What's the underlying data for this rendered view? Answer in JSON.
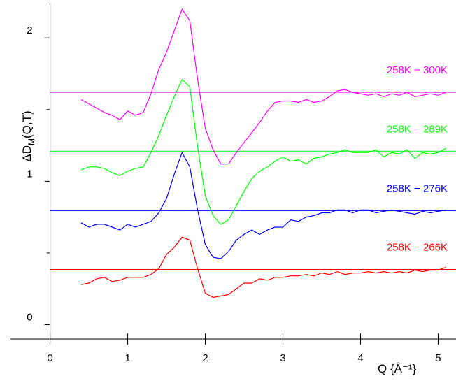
{
  "chart_data": {
    "type": "line",
    "ylabel": [
      "ΔD",
      "M",
      "(Q,T)"
    ],
    "xlabel": "Q  {Å⁻¹}",
    "xlim": [
      -0.51,
      5.23
    ],
    "ylim": [
      -0.1,
      2.24
    ],
    "xticks": [
      0,
      1,
      2,
      3,
      4,
      5
    ],
    "yticks": [
      0,
      1,
      2
    ],
    "yminorticks": [
      0.5,
      1.5
    ],
    "x": [
      0.4,
      0.5,
      0.6,
      0.7,
      0.8,
      0.9,
      1.0,
      1.1,
      1.2,
      1.3,
      1.4,
      1.5,
      1.6,
      1.7,
      1.8,
      1.9,
      2.0,
      2.1,
      2.2,
      2.3,
      2.4,
      2.5,
      2.6,
      2.7,
      2.8,
      2.9,
      3.0,
      3.1,
      3.2,
      3.3,
      3.4,
      3.5,
      3.6,
      3.7,
      3.8,
      3.9,
      4.0,
      4.1,
      4.2,
      4.3,
      4.4,
      4.5,
      4.6,
      4.7,
      4.8,
      4.9,
      5.0,
      5.1
    ],
    "series": [
      {
        "name": "258K  −  266K",
        "color": "#ff0000",
        "baseline": 0.385,
        "values": [
          0.28,
          0.29,
          0.32,
          0.33,
          0.3,
          0.31,
          0.33,
          0.33,
          0.33,
          0.35,
          0.39,
          0.49,
          0.54,
          0.61,
          0.59,
          0.39,
          0.22,
          0.19,
          0.2,
          0.21,
          0.25,
          0.29,
          0.29,
          0.32,
          0.31,
          0.33,
          0.33,
          0.34,
          0.34,
          0.35,
          0.34,
          0.36,
          0.35,
          0.37,
          0.35,
          0.36,
          0.36,
          0.37,
          0.36,
          0.37,
          0.36,
          0.37,
          0.36,
          0.38,
          0.37,
          0.38,
          0.38,
          0.4
        ]
      },
      {
        "name": "258K  −  276K",
        "color": "#0000ff",
        "baseline": 0.795,
        "values": [
          0.71,
          0.68,
          0.7,
          0.7,
          0.68,
          0.66,
          0.7,
          0.68,
          0.7,
          0.72,
          0.78,
          0.88,
          1.05,
          1.2,
          1.1,
          0.8,
          0.56,
          0.47,
          0.46,
          0.51,
          0.59,
          0.63,
          0.66,
          0.63,
          0.66,
          0.68,
          0.68,
          0.73,
          0.72,
          0.75,
          0.76,
          0.78,
          0.78,
          0.8,
          0.8,
          0.78,
          0.8,
          0.8,
          0.78,
          0.79,
          0.8,
          0.79,
          0.78,
          0.77,
          0.79,
          0.78,
          0.79,
          0.8
        ]
      },
      {
        "name": "258K  −  289K",
        "color": "#00ff00",
        "baseline": 1.21,
        "values": [
          1.08,
          1.1,
          1.1,
          1.09,
          1.06,
          1.04,
          1.07,
          1.09,
          1.1,
          1.2,
          1.32,
          1.46,
          1.59,
          1.71,
          1.66,
          1.24,
          0.9,
          0.76,
          0.7,
          0.73,
          0.83,
          0.93,
          1.02,
          1.07,
          1.1,
          1.14,
          1.17,
          1.14,
          1.15,
          1.12,
          1.16,
          1.17,
          1.19,
          1.2,
          1.22,
          1.2,
          1.2,
          1.2,
          1.22,
          1.17,
          1.2,
          1.19,
          1.22,
          1.16,
          1.2,
          1.19,
          1.2,
          1.23
        ]
      },
      {
        "name": "258K  −  300K",
        "color": "#ff00ff",
        "baseline": 1.62,
        "values": [
          1.57,
          1.54,
          1.51,
          1.48,
          1.46,
          1.43,
          1.49,
          1.46,
          1.48,
          1.61,
          1.78,
          1.9,
          2.05,
          2.2,
          2.12,
          1.71,
          1.37,
          1.22,
          1.12,
          1.12,
          1.2,
          1.27,
          1.34,
          1.41,
          1.49,
          1.55,
          1.56,
          1.56,
          1.55,
          1.57,
          1.55,
          1.56,
          1.59,
          1.63,
          1.64,
          1.62,
          1.61,
          1.6,
          1.61,
          1.59,
          1.61,
          1.6,
          1.62,
          1.59,
          1.6,
          1.61,
          1.6,
          1.62
        ]
      }
    ]
  }
}
